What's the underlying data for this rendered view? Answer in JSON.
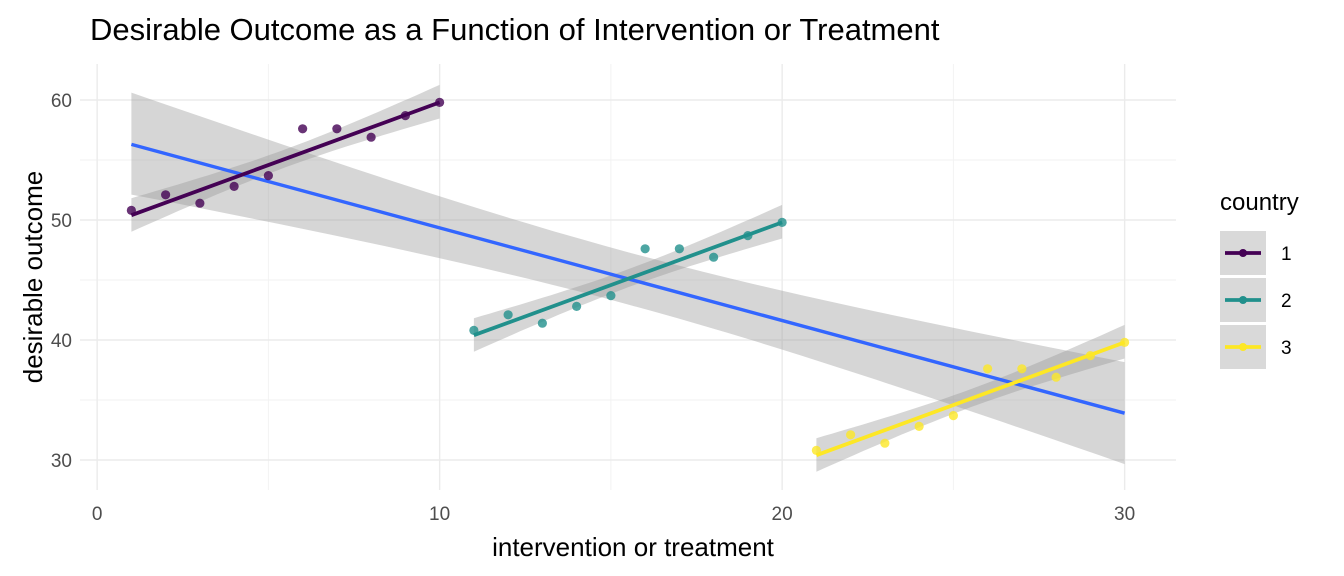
{
  "chart_data": {
    "type": "scatter",
    "title": "Desirable Outcome as a Function of Intervention or Treatment",
    "xlabel": "intervention or treatment",
    "ylabel": "desirable outcome",
    "xlim": [
      -0.5,
      31.5
    ],
    "ylim": [
      27.5,
      63
    ],
    "x_ticks": [
      0,
      10,
      20,
      30
    ],
    "y_ticks": [
      30,
      40,
      50,
      60
    ],
    "grid": true,
    "legend": {
      "title": "country",
      "position": "right"
    },
    "series": [
      {
        "name": "1",
        "color": "#440154",
        "points": [
          [
            1,
            50.8
          ],
          [
            2,
            52.1
          ],
          [
            3,
            51.4
          ],
          [
            4,
            52.8
          ],
          [
            5,
            53.7
          ],
          [
            6,
            57.6
          ],
          [
            7,
            57.6
          ],
          [
            8,
            56.9
          ],
          [
            9,
            58.7
          ],
          [
            10,
            59.8
          ]
        ],
        "fit": {
          "x": [
            1,
            10
          ],
          "y": [
            50.4,
            59.8
          ]
        }
      },
      {
        "name": "2",
        "color": "#21908C",
        "points": [
          [
            11,
            40.8
          ],
          [
            12,
            42.1
          ],
          [
            13,
            41.4
          ],
          [
            14,
            42.8
          ],
          [
            15,
            43.7
          ],
          [
            16,
            47.6
          ],
          [
            17,
            47.6
          ],
          [
            18,
            46.9
          ],
          [
            19,
            48.7
          ],
          [
            20,
            49.8
          ]
        ],
        "fit": {
          "x": [
            11,
            20
          ],
          "y": [
            40.4,
            49.8
          ]
        }
      },
      {
        "name": "3",
        "color": "#FDE725",
        "points": [
          [
            21,
            30.8
          ],
          [
            22,
            32.1
          ],
          [
            23,
            31.4
          ],
          [
            24,
            32.8
          ],
          [
            25,
            33.7
          ],
          [
            26,
            37.6
          ],
          [
            27,
            37.6
          ],
          [
            28,
            36.9
          ],
          [
            29,
            38.7
          ],
          [
            30,
            39.8
          ]
        ],
        "fit": {
          "x": [
            21,
            30
          ],
          "y": [
            30.4,
            39.8
          ]
        }
      }
    ],
    "overall_fit": {
      "color": "#3366FF",
      "x": [
        1,
        30
      ],
      "y": [
        56.3,
        33.9
      ]
    }
  }
}
